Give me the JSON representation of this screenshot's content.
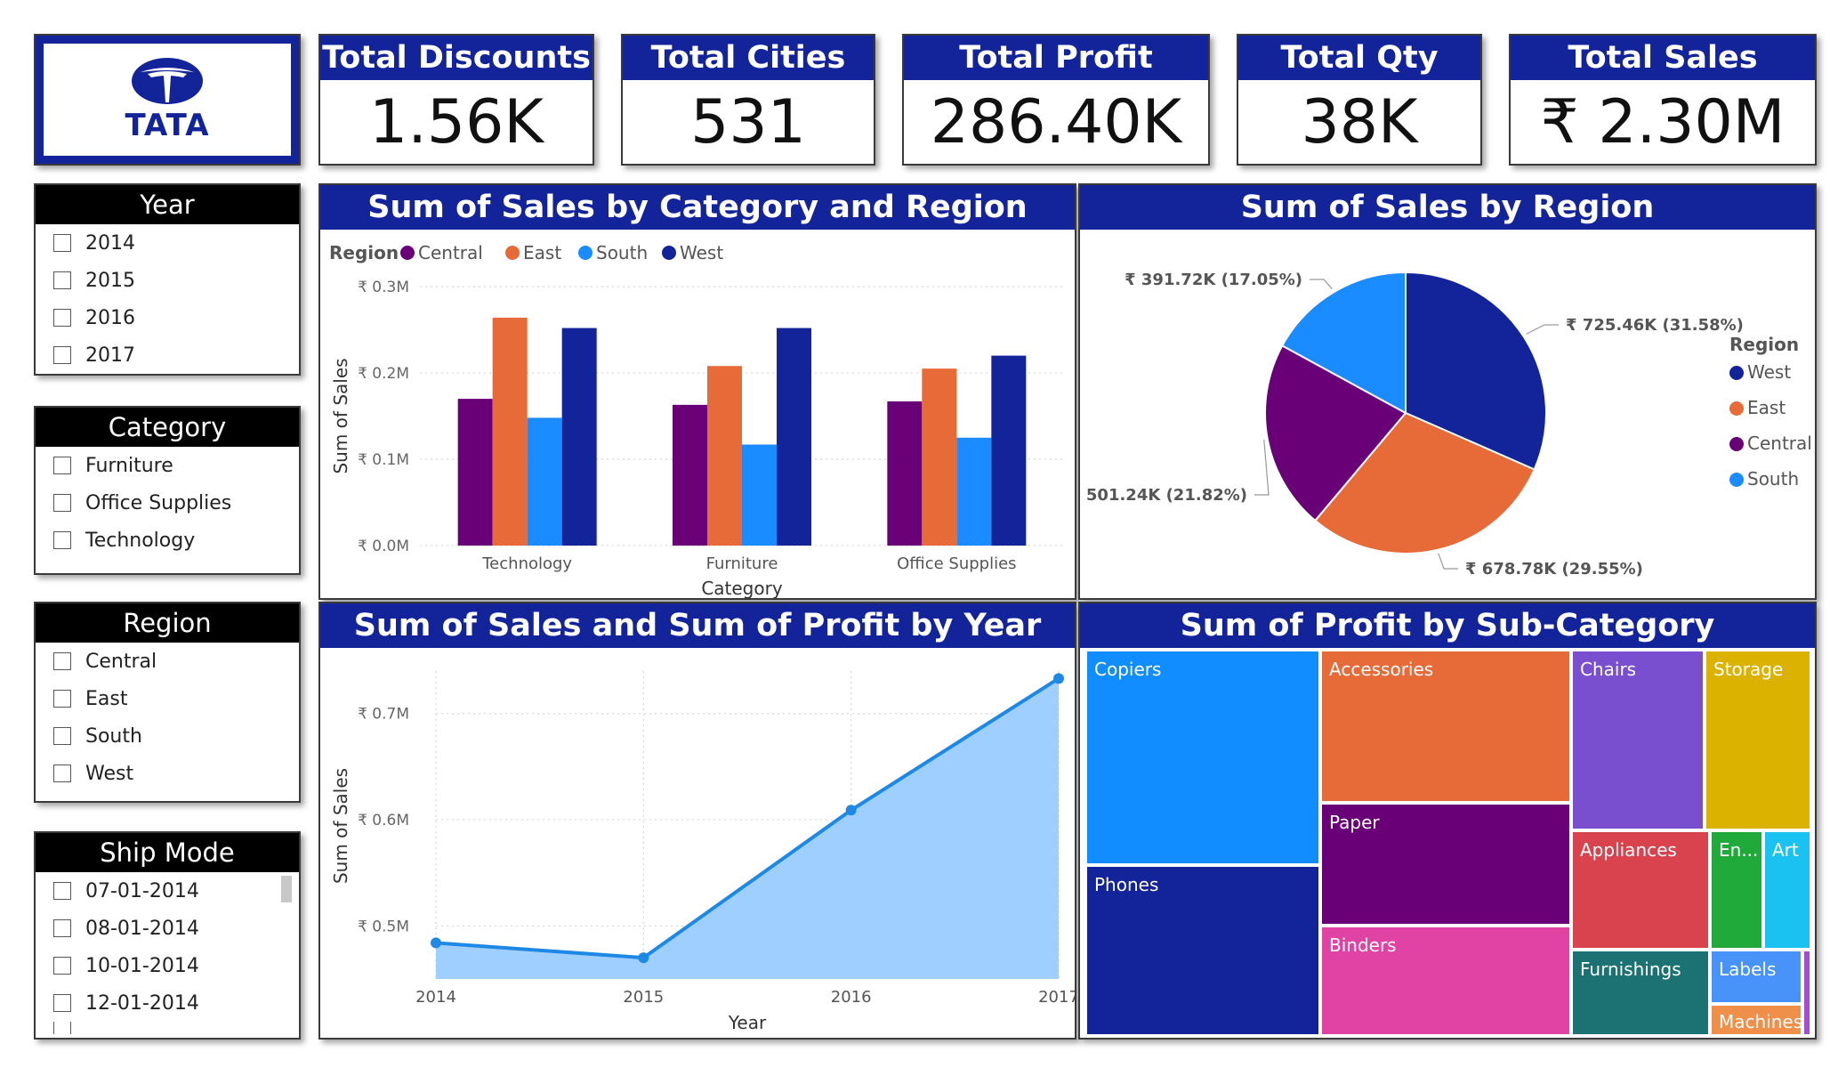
{
  "logo": {
    "text": "TATA"
  },
  "kpis": [
    {
      "label": "Total Discounts",
      "value": "1.56K"
    },
    {
      "label": "Total Cities",
      "value": "531"
    },
    {
      "label": "Total Profit",
      "value": "286.40K"
    },
    {
      "label": "Total Qty",
      "value": "38K"
    },
    {
      "label": "Total Sales",
      "value": "₹ 2.30M"
    }
  ],
  "slicers": {
    "year": {
      "title": "Year",
      "items": [
        "2014",
        "2015",
        "2016",
        "2017"
      ]
    },
    "category": {
      "title": "Category",
      "items": [
        "Furniture",
        "Office Supplies",
        "Technology"
      ]
    },
    "region": {
      "title": "Region",
      "items": [
        "Central",
        "East",
        "South",
        "West"
      ]
    },
    "ship_mode": {
      "title": "Ship Mode",
      "items": [
        "07-01-2014",
        "08-01-2014",
        "10-01-2014",
        "12-01-2014"
      ]
    }
  },
  "colors": {
    "central": "#6a0077",
    "east": "#e76a39",
    "south": "#1a8cff",
    "west": "#13239a",
    "header": "#13239a"
  },
  "bar_panel": {
    "title": "Sum of Sales by Category and Region"
  },
  "pie_panel": {
    "title": "Sum of Sales by Region"
  },
  "line_panel": {
    "title": "Sum of Sales and Sum of Profit by Year"
  },
  "tree_panel": {
    "title": "Sum of Profit by Sub-Category"
  },
  "chart_data": [
    {
      "type": "bar",
      "title": "Sum of Sales by Category and Region",
      "legend_title": "Region",
      "legend_position": "top-left",
      "categories": [
        "Technology",
        "Furniture",
        "Office Supplies"
      ],
      "series": [
        {
          "name": "Central",
          "values": [
            170000,
            163000,
            167000
          ]
        },
        {
          "name": "East",
          "values": [
            264000,
            208000,
            205000
          ]
        },
        {
          "name": "South",
          "values": [
            148000,
            117000,
            125000
          ]
        },
        {
          "name": "West",
          "values": [
            252000,
            252000,
            220000
          ]
        }
      ],
      "xlabel": "Category",
      "ylabel": "Sum of Sales",
      "yticks": [
        "₹ 0.0M",
        "₹ 0.1M",
        "₹ 0.2M",
        "₹ 0.3M"
      ],
      "ylim": [
        0,
        300000
      ],
      "grid": true
    },
    {
      "type": "pie",
      "title": "Sum of Sales by Region",
      "legend_title": "Region",
      "legend_position": "right",
      "slices": [
        {
          "name": "West",
          "value": 725.46,
          "label": "₹ 725.46K (31.58%)"
        },
        {
          "name": "East",
          "value": 678.78,
          "label": "₹ 678.78K (29.55%)"
        },
        {
          "name": "Central",
          "value": 501.24,
          "label": "₹ 501.24K (21.82%)"
        },
        {
          "name": "South",
          "value": 391.72,
          "label": "₹ 391.72K (17.05%)"
        }
      ]
    },
    {
      "type": "area",
      "title": "Sum of Sales and Sum of Profit by Year",
      "x": [
        "2014",
        "2015",
        "2016",
        "2017"
      ],
      "values": [
        484000,
        470000,
        609000,
        733000
      ],
      "xlabel": "Year",
      "ylabel": "Sum of Sales",
      "yticks": [
        "₹ 0.5M",
        "₹ 0.6M",
        "₹ 0.7M"
      ],
      "ylim": [
        0.45,
        0.74
      ],
      "grid": true
    },
    {
      "type": "treemap",
      "title": "Sum of Profit by Sub-Category",
      "items": [
        {
          "name": "Copiers",
          "color": "#128dff"
        },
        {
          "name": "Phones",
          "color": "#13239a"
        },
        {
          "name": "Accessories",
          "color": "#e76a39"
        },
        {
          "name": "Paper",
          "color": "#6a0077"
        },
        {
          "name": "Binders",
          "color": "#e043a4"
        },
        {
          "name": "Chairs",
          "color": "#7a4fcf"
        },
        {
          "name": "Storage",
          "color": "#dbb200"
        },
        {
          "name": "Appliances",
          "color": "#d9434e"
        },
        {
          "name": "En...",
          "color": "#1faa39"
        },
        {
          "name": "Art",
          "color": "#19c2f0"
        },
        {
          "name": "Furnishings",
          "color": "#1c7273"
        },
        {
          "name": "Labels",
          "color": "#4793fa"
        },
        {
          "name": "Machines",
          "color": "#f08f4a"
        },
        {
          "name": "",
          "color": "#a44dd1"
        }
      ]
    }
  ]
}
